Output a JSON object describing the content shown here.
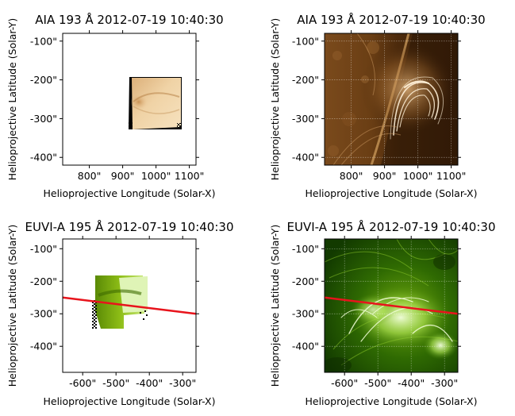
{
  "figure": {
    "background": "#ffffff",
    "note_colors": {
      "aia_dark": "#3a1f08",
      "aia_light": "#f4dcb2",
      "euvi_dark": "#0f3300",
      "euvi_light": "#eaffd0",
      "line_red": "#e8141c"
    }
  },
  "chart_data": [
    {
      "type": "image",
      "title": "AIA 193 Å 2012-07-19 10:40:30",
      "xlabel": "Helioprojective Longitude (Solar-X)",
      "ylabel": "Helioprojective Latitude (Solar-Y)",
      "x_ticks": [
        "800\"",
        "900\"",
        "1000\"",
        "1100\""
      ],
      "x_tick_values": [
        800,
        900,
        1000,
        1100
      ],
      "y_ticks": [
        "-100\"",
        "-200\"",
        "-300\"",
        "-400\""
      ],
      "y_tick_values": [
        -100,
        -200,
        -300,
        -400
      ],
      "xlim": [
        720,
        1120
      ],
      "ylim": [
        -420,
        -80
      ],
      "image": "reprojected AIA patch",
      "cmap": "sdoaia193",
      "grid": false
    },
    {
      "type": "image",
      "title": "AIA 193 Å 2012-07-19 10:40:30",
      "xlabel": "Helioprojective Longitude (Solar-X)",
      "ylabel": "Helioprojective Latitude (Solar-Y)",
      "x_ticks": [
        "800\"",
        "900\"",
        "1000\"",
        "1100\""
      ],
      "x_tick_values": [
        800,
        900,
        1000,
        1100
      ],
      "y_ticks": [
        "-100\"",
        "-200\"",
        "-300\"",
        "-400\""
      ],
      "y_tick_values": [
        -100,
        -200,
        -300,
        -400
      ],
      "xlim": [
        720,
        1120
      ],
      "ylim": [
        -420,
        -80
      ],
      "image": "solar limb with post-flare loops",
      "cmap": "sdoaia193",
      "grid": true
    },
    {
      "type": "image",
      "title": "EUVI-A 195 Å 2012-07-19 10:40:30",
      "xlabel": "Helioprojective Longitude (Solar-X)",
      "ylabel": "Helioprojective Latitude (Solar-Y)",
      "x_ticks": [
        "-600\"",
        "-500\"",
        "-400\"",
        "-300\""
      ],
      "x_tick_values": [
        -600,
        -500,
        -400,
        -300
      ],
      "y_ticks": [
        "-100\"",
        "-200\"",
        "-300\"",
        "-400\""
      ],
      "y_tick_values": [
        -100,
        -200,
        -300,
        -400
      ],
      "xlim": [
        -660,
        -260
      ],
      "ylim": [
        -480,
        -70
      ],
      "image": "reprojected EUVI patch",
      "cmap": "euvi195",
      "grid": false,
      "line": {
        "color": "#e8141c",
        "x": [
          -660,
          -260
        ],
        "y": [
          -250,
          -300
        ]
      }
    },
    {
      "type": "image",
      "title": "EUVI-A 195 Å 2012-07-19 10:40:30",
      "xlabel": "Helioprojective Longitude (Solar-X)",
      "ylabel": "Helioprojective Latitude (Solar-Y)",
      "x_ticks": [
        "-600\"",
        "-500\"",
        "-400\"",
        "-300\""
      ],
      "x_tick_values": [
        -600,
        -500,
        -400,
        -300
      ],
      "y_ticks": [
        "-100\"",
        "-200\"",
        "-300\"",
        "-400\""
      ],
      "y_tick_values": [
        -100,
        -200,
        -300,
        -400
      ],
      "xlim": [
        -660,
        -260
      ],
      "ylim": [
        -480,
        -70
      ],
      "image": "EUVI active region",
      "cmap": "euvi195",
      "grid": true,
      "line": {
        "color": "#e8141c",
        "x": [
          -660,
          -260
        ],
        "y": [
          -250,
          -300
        ]
      }
    }
  ]
}
